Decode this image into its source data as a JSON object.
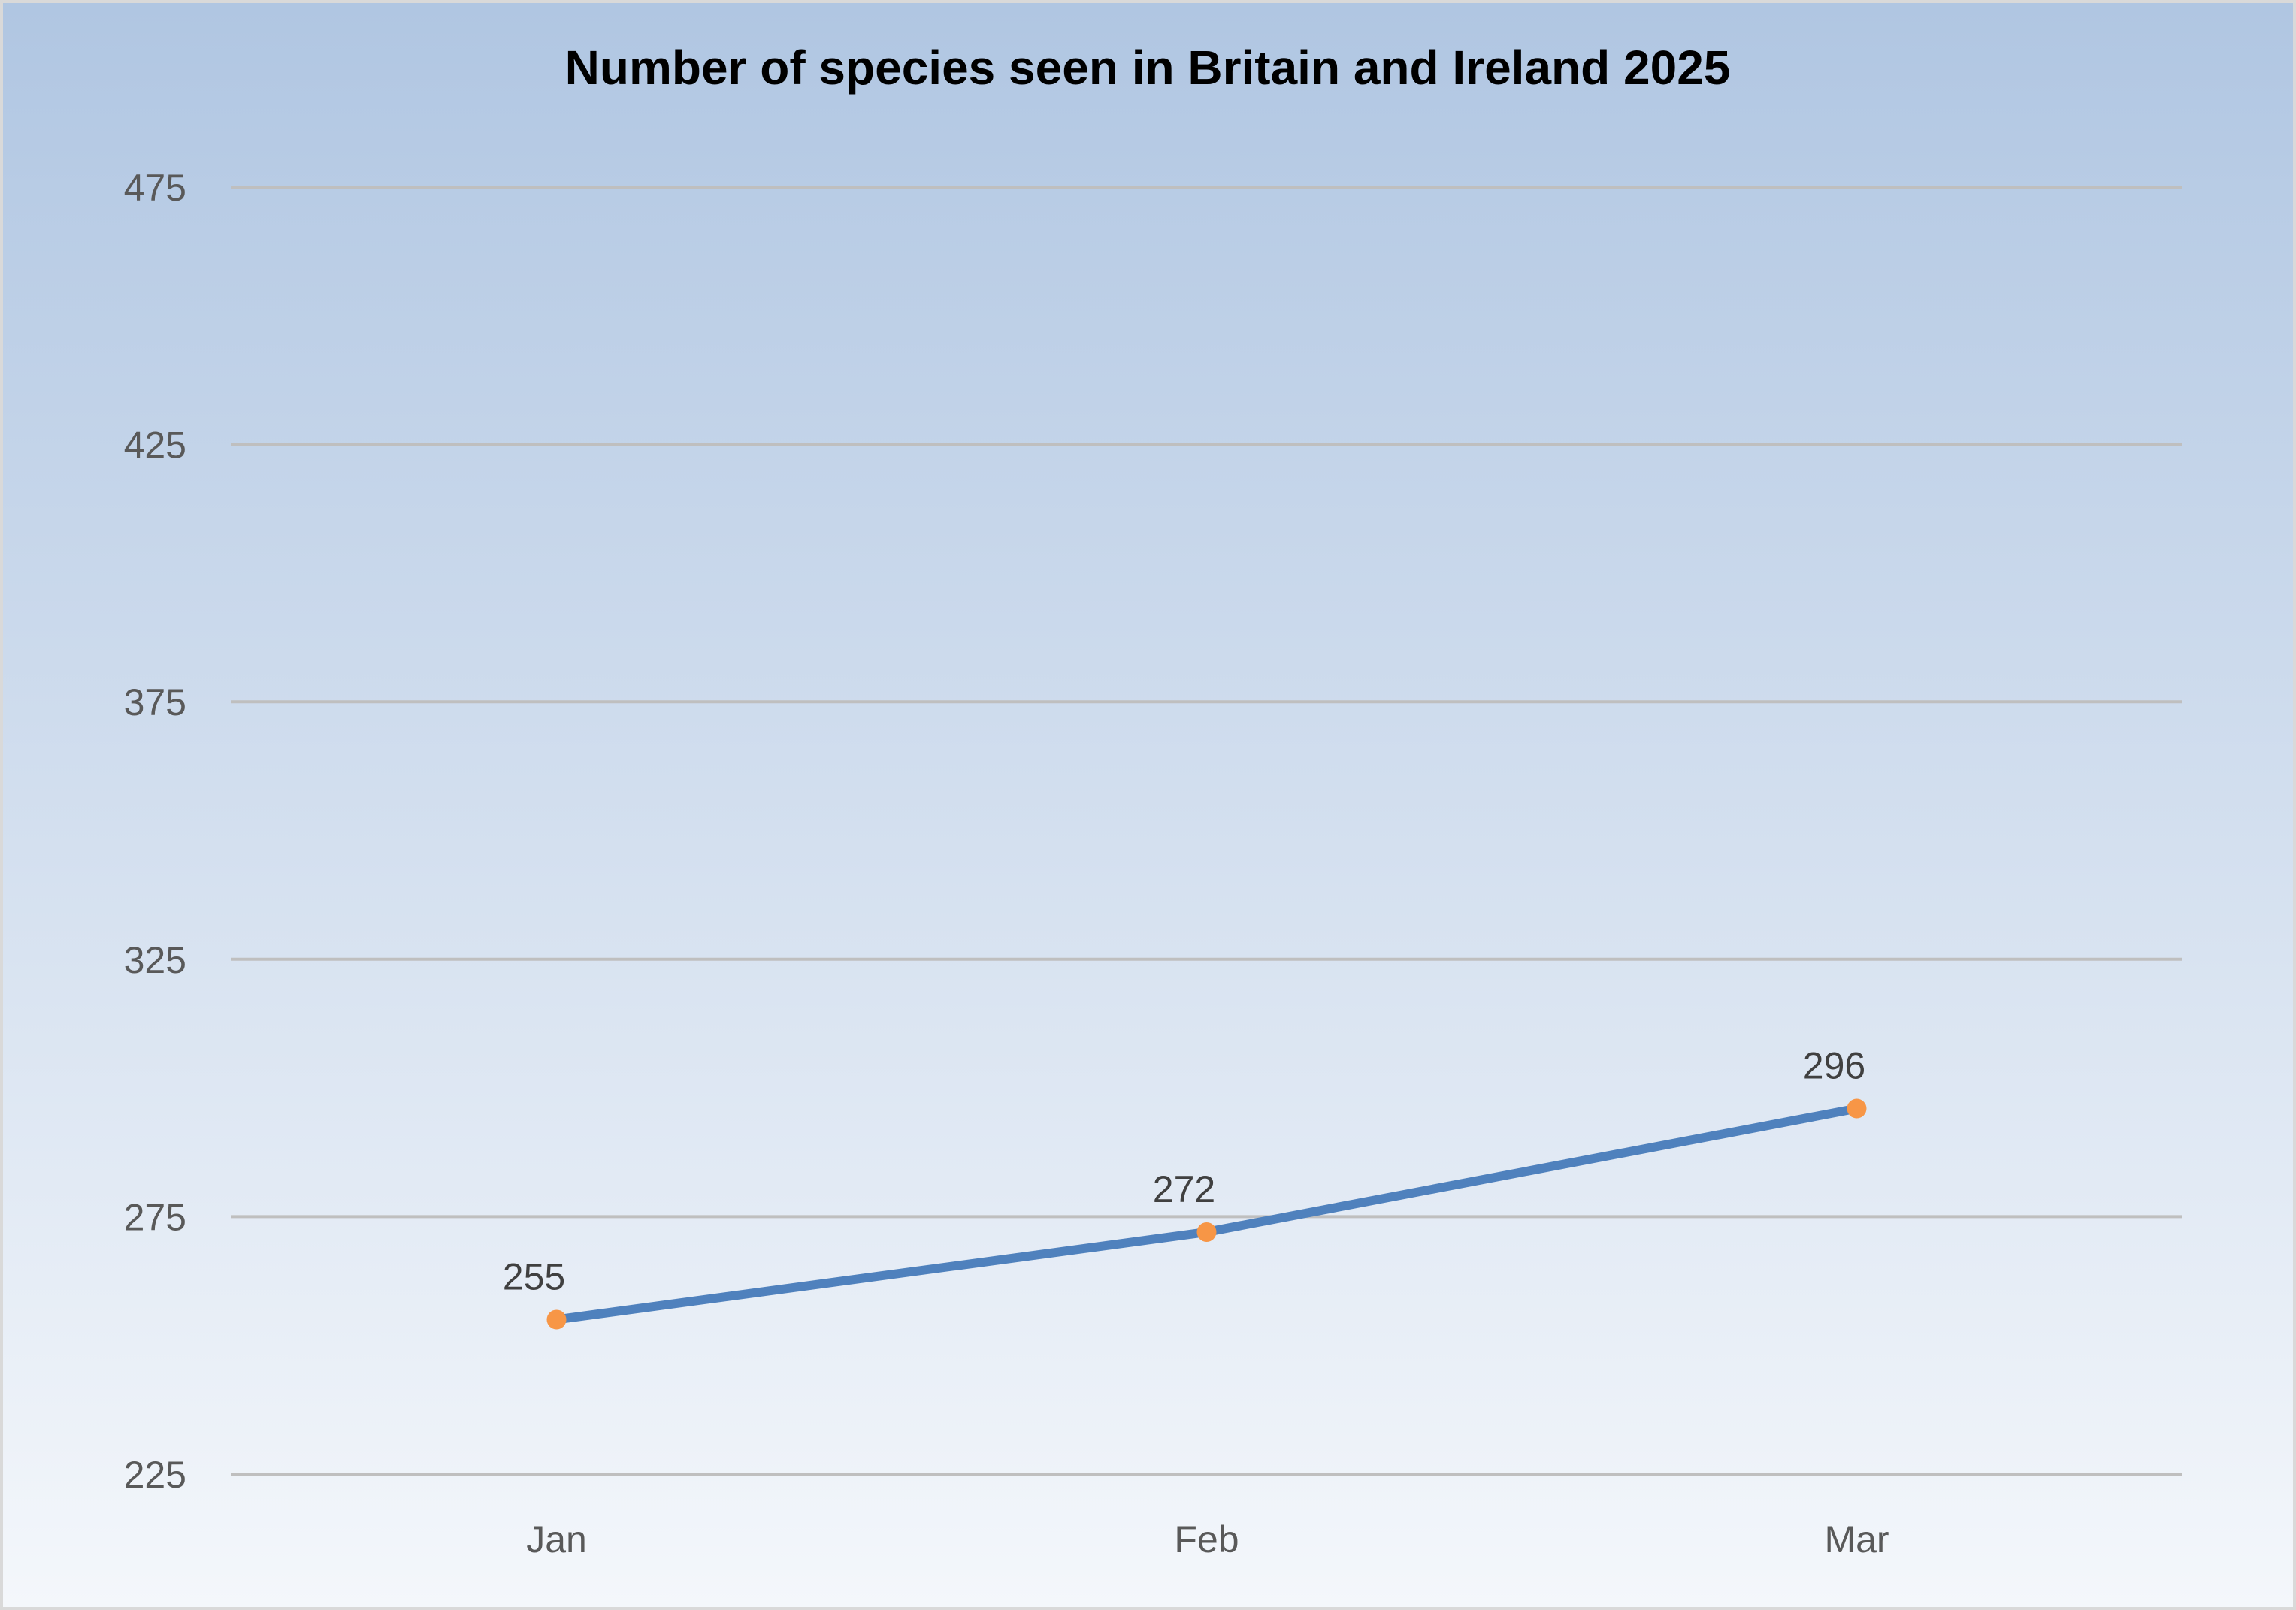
{
  "chart_data": {
    "type": "line",
    "title": "Number of species seen in Britain and Ireland 2025",
    "xlabel": "",
    "ylabel": "",
    "categories": [
      "Jan",
      "Feb",
      "Mar"
    ],
    "series": [
      {
        "name": "Species",
        "values": [
          255,
          272,
          296
        ],
        "labels": [
          "255",
          "272",
          "296"
        ]
      }
    ],
    "ylim": [
      225,
      475
    ],
    "yticks": [
      225,
      275,
      325,
      375,
      425,
      475
    ],
    "ytick_labels": [
      "225",
      "275",
      "325",
      "375",
      "425",
      "475"
    ],
    "grid": true,
    "legend": "none",
    "colors": {
      "line": "#4f81bd",
      "marker": "#f79646",
      "grid": "#bfbfbf",
      "background_top": "#b0c6e2",
      "background_bottom": "#f4f7fb",
      "border": "#d9d9d9"
    }
  }
}
